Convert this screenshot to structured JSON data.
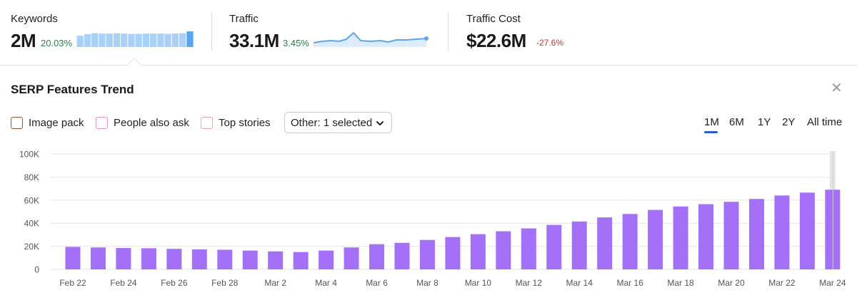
{
  "metrics": {
    "keywords": {
      "label": "Keywords",
      "value": "2M",
      "change": "20.03%",
      "trend": "up",
      "bar_levels": [
        0.72,
        0.82,
        0.88,
        0.86,
        0.86,
        0.88,
        0.86,
        0.84,
        0.84,
        0.86,
        0.86,
        0.86,
        0.84,
        0.86,
        0.88,
        1.0
      ]
    },
    "traffic": {
      "label": "Traffic",
      "value": "33.1M",
      "change": "3.45%",
      "trend": "up"
    },
    "traffic_cost": {
      "label": "Traffic Cost",
      "value": "$22.6M",
      "change": "-27.6%",
      "trend": "down"
    }
  },
  "panel": {
    "title": "SERP Features Trend",
    "filters": [
      {
        "label": "Image pack",
        "color": "#8a5a2b"
      },
      {
        "label": "People also ask",
        "color": "#e58fd6"
      },
      {
        "label": "Top stories",
        "color": "#f0a3a3"
      }
    ],
    "dropdown": {
      "label": "Other: 1 selected"
    },
    "ranges": [
      "1M",
      "6M",
      "1Y",
      "2Y",
      "All time"
    ],
    "active_range": "1M"
  },
  "colors": {
    "bar": "#a370f7",
    "spark_line": "#58a6f0",
    "spark_fill": "#dcecfc",
    "keyword_bar": "#a9d0f7",
    "keyword_bar_last": "#58a6f0",
    "grid": "#e6e6ea",
    "axis_text": "#555555",
    "active_tab": "#2a5bd7"
  },
  "icons": {
    "close": "close-icon",
    "dropdown": "chevron-down-icon"
  },
  "chart_data": {
    "type": "bar",
    "title": "",
    "xlabel": "",
    "ylabel": "",
    "ylim": [
      0,
      100000
    ],
    "yticks": [
      "0",
      "20K",
      "40K",
      "60K",
      "80K",
      "100K"
    ],
    "ytick_values": [
      0,
      20000,
      40000,
      60000,
      80000,
      100000
    ],
    "grid": true,
    "categories": [
      "Feb 22",
      "Feb 23",
      "Feb 24",
      "Feb 25",
      "Feb 26",
      "Feb 27",
      "Feb 28",
      "Mar 1",
      "Mar 2",
      "Mar 3",
      "Mar 4",
      "Mar 5",
      "Mar 6",
      "Mar 7",
      "Mar 8",
      "Mar 9",
      "Mar 10",
      "Mar 11",
      "Mar 12",
      "Mar 13",
      "Mar 14",
      "Mar 15",
      "Mar 16",
      "Mar 17",
      "Mar 18",
      "Mar 19",
      "Mar 20",
      "Mar 21",
      "Mar 22",
      "Mar 23",
      "Mar 24"
    ],
    "xtick_labels": [
      "Feb 22",
      "Feb 24",
      "Feb 26",
      "Feb 28",
      "Mar 2",
      "Mar 4",
      "Mar 6",
      "Mar 8",
      "Mar 10",
      "Mar 12",
      "Mar 14",
      "Mar 16",
      "Mar 18",
      "Mar 20",
      "Mar 22",
      "Mar 24"
    ],
    "values": [
      19500,
      19000,
      18500,
      18300,
      17800,
      17300,
      17000,
      16300,
      15600,
      15000,
      16300,
      19000,
      21800,
      23000,
      25500,
      28000,
      30500,
      33000,
      35500,
      38500,
      41500,
      45000,
      48000,
      51500,
      54500,
      56500,
      58500,
      61000,
      64000,
      66500,
      69000
    ],
    "highlight_category": "Mar 24"
  }
}
